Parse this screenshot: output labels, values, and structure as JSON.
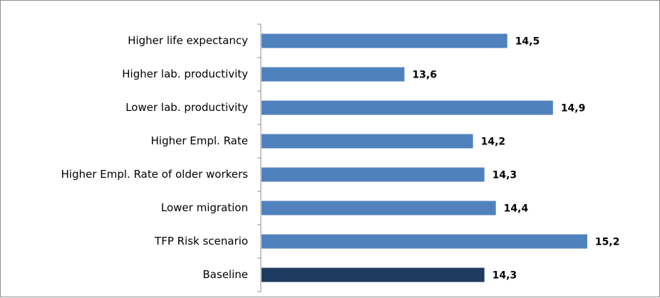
{
  "chart_data": {
    "type": "bar",
    "orientation": "horizontal",
    "title": "",
    "xlabel": "",
    "ylabel": "",
    "xlim": [
      12.35,
      15.45
    ],
    "grid": false,
    "legend": "none",
    "categories": [
      "Higher life expectancy",
      "Higher lab. productivity",
      "Lower lab. productivity",
      "Higher Empl. Rate",
      "Higher Empl. Rate of older workers",
      "Lower migration",
      "TFP Risk scenario",
      "Baseline"
    ],
    "values": [
      14.5,
      13.6,
      14.9,
      14.2,
      14.3,
      14.4,
      15.2,
      14.3
    ],
    "value_labels": [
      "14,5",
      "13,6",
      "14,9",
      "14,2",
      "14,3",
      "14,4",
      "15,2",
      "14,3"
    ],
    "colors": [
      "#4f81bd",
      "#4f81bd",
      "#4f81bd",
      "#4f81bd",
      "#4f81bd",
      "#4f81bd",
      "#4f81bd",
      "#1f3a5f"
    ]
  }
}
